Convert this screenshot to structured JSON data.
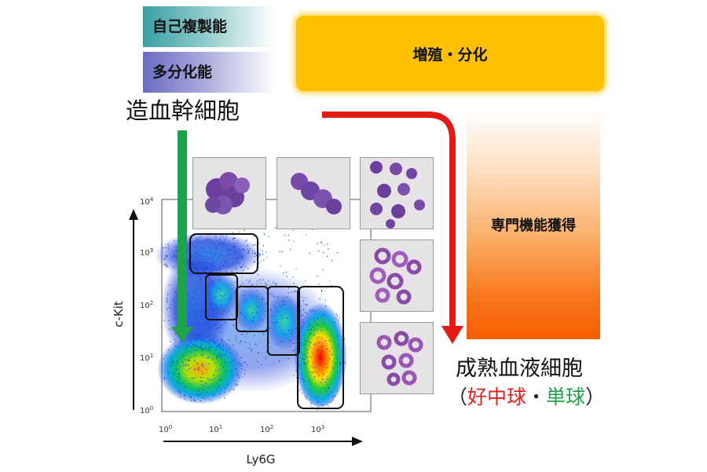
{
  "legend": {
    "self_renewal": "自己複製能",
    "multipotency": "多分化能"
  },
  "bands": {
    "proliferation": "増殖・分化",
    "function": "専門機能獲得"
  },
  "labels": {
    "hsc": "造血幹細胞",
    "mature": "成熟血液細胞",
    "paren_open": "（",
    "neutrophil": "好中球",
    "dot": "・",
    "monocyte": "単球",
    "paren_close": "）"
  },
  "plot": {
    "y_axis_title": "c-Kit",
    "x_axis_title": "Ly6G",
    "y_ticks": [
      {
        "base": "10",
        "exp": "0"
      },
      {
        "base": "10",
        "exp": "1"
      },
      {
        "base": "10",
        "exp": "2"
      },
      {
        "base": "10",
        "exp": "3"
      },
      {
        "base": "10",
        "exp": "4"
      }
    ],
    "x_ticks": [
      {
        "base": "10",
        "exp": "0"
      },
      {
        "base": "10",
        "exp": "1"
      },
      {
        "base": "10",
        "exp": "2"
      },
      {
        "base": "10",
        "exp": "3"
      }
    ]
  },
  "colors": {
    "teal": "#3aa0a2",
    "purple": "#6c6bc4",
    "orange": "#ffc000",
    "deep_orange": "#f75c02",
    "red_arrow": "#e51a14",
    "green_arrow": "#1ea24a",
    "neutrophil_text": "#e0201b",
    "monocyte_text": "#1ea24a"
  }
}
